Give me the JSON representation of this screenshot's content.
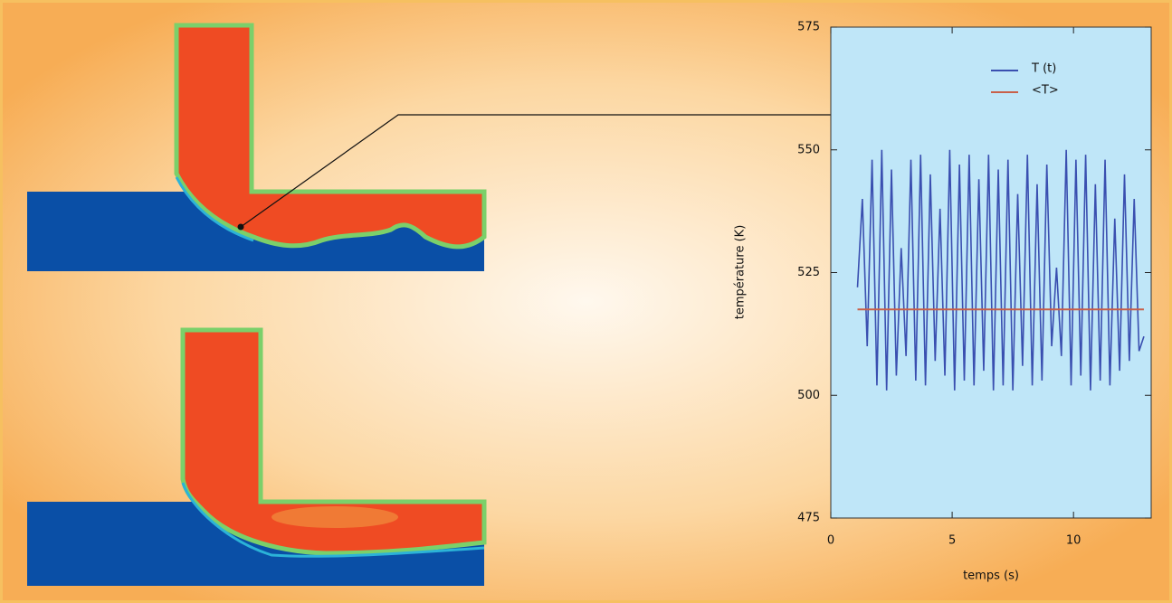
{
  "chart_data": {
    "type": "line",
    "xlabel": "temps (s)",
    "ylabel": "température (K)",
    "xlim": [
      0,
      13.2
    ],
    "ylim": [
      475,
      575
    ],
    "xticks": [
      0,
      5,
      10
    ],
    "yticks": [
      475,
      500,
      525,
      550,
      575
    ],
    "legend": "upper center",
    "series": [
      {
        "name": "T (t)",
        "color": "#3a4fb0",
        "x": [
          1.1,
          1.3,
          1.5,
          1.7,
          1.9,
          2.1,
          2.3,
          2.5,
          2.7,
          2.9,
          3.1,
          3.3,
          3.5,
          3.7,
          3.9,
          4.1,
          4.3,
          4.5,
          4.7,
          4.9,
          5.1,
          5.3,
          5.5,
          5.7,
          5.9,
          6.1,
          6.3,
          6.5,
          6.7,
          6.9,
          7.1,
          7.3,
          7.5,
          7.7,
          7.9,
          8.1,
          8.3,
          8.5,
          8.7,
          8.9,
          9.1,
          9.3,
          9.5,
          9.7,
          9.9,
          10.1,
          10.3,
          10.5,
          10.7,
          10.9,
          11.1,
          11.3,
          11.5,
          11.7,
          11.9,
          12.1,
          12.3,
          12.5,
          12.7,
          12.9
        ],
        "values": [
          522,
          540,
          510,
          548,
          502,
          550,
          501,
          546,
          504,
          530,
          508,
          548,
          503,
          549,
          502,
          545,
          507,
          538,
          504,
          550,
          501,
          547,
          503,
          549,
          502,
          544,
          505,
          549,
          501,
          546,
          502,
          548,
          501,
          541,
          506,
          549,
          502,
          543,
          503,
          547,
          510,
          526,
          508,
          550,
          502,
          548,
          504,
          549,
          501,
          543,
          503,
          548,
          502,
          536,
          505,
          545,
          507,
          540,
          509,
          512
        ]
      },
      {
        "name": "<T>",
        "color": "#c8604a",
        "x": [
          1.1,
          12.9
        ],
        "values": [
          517.5,
          517.5
        ]
      }
    ]
  }
}
